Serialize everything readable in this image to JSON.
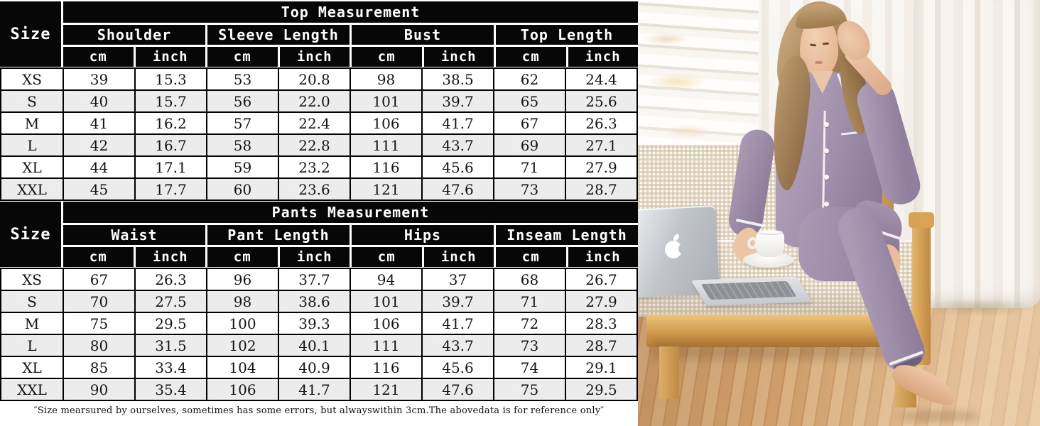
{
  "page": {
    "footnote": "″Size mearsured by ourselves, sometimes has some errors, but alwayswithin 3cm.The abovedata is for reference only″"
  },
  "tables": [
    {
      "title": "Top Measurement",
      "size_label": "Size",
      "column_groups": [
        {
          "label": "Shoulder",
          "units": [
            "cm",
            "inch"
          ]
        },
        {
          "label": "Sleeve Length",
          "units": [
            "cm",
            "inch"
          ]
        },
        {
          "label": "Bust",
          "units": [
            "cm",
            "inch"
          ]
        },
        {
          "label": "Top Length",
          "units": [
            "cm",
            "inch"
          ]
        }
      ],
      "rows": [
        {
          "size": "XS",
          "values": [
            "39",
            "15.3",
            "53",
            "20.8",
            "98",
            "38.5",
            "62",
            "24.4"
          ]
        },
        {
          "size": "S",
          "values": [
            "40",
            "15.7",
            "56",
            "22.0",
            "101",
            "39.7",
            "65",
            "25.6"
          ]
        },
        {
          "size": "M",
          "values": [
            "41",
            "16.2",
            "57",
            "22.4",
            "106",
            "41.7",
            "67",
            "26.3"
          ]
        },
        {
          "size": "L",
          "values": [
            "42",
            "16.7",
            "58",
            "22.8",
            "111",
            "43.7",
            "69",
            "27.1"
          ]
        },
        {
          "size": "XL",
          "values": [
            "44",
            "17.1",
            "59",
            "23.2",
            "116",
            "45.6",
            "71",
            "27.9"
          ]
        },
        {
          "size": "XXL",
          "values": [
            "45",
            "17.7",
            "60",
            "23.6",
            "121",
            "47.6",
            "73",
            "28.7"
          ]
        }
      ]
    },
    {
      "title": "Pants Measurement",
      "size_label": "Size",
      "column_groups": [
        {
          "label": "Waist",
          "units": [
            "cm",
            "inch"
          ]
        },
        {
          "label": "Pant Length",
          "units": [
            "cm",
            "inch"
          ]
        },
        {
          "label": "Hips",
          "units": [
            "cm",
            "inch"
          ]
        },
        {
          "label": "Inseam Length",
          "units": [
            "cm",
            "inch"
          ]
        }
      ],
      "rows": [
        {
          "size": "XS",
          "values": [
            "67",
            "26.3",
            "96",
            "37.7",
            "94",
            "37",
            "68",
            "26.7"
          ]
        },
        {
          "size": "S",
          "values": [
            "70",
            "27.5",
            "98",
            "38.6",
            "101",
            "39.7",
            "71",
            "27.9"
          ]
        },
        {
          "size": "M",
          "values": [
            "75",
            "29.5",
            "100",
            "39.3",
            "106",
            "41.7",
            "72",
            "28.3"
          ]
        },
        {
          "size": "L",
          "values": [
            "80",
            "31.5",
            "102",
            "40.1",
            "111",
            "43.7",
            "73",
            "28.7"
          ]
        },
        {
          "size": "XL",
          "values": [
            "85",
            "33.4",
            "104",
            "40.9",
            "116",
            "45.6",
            "74",
            "29.1"
          ]
        },
        {
          "size": "XXL",
          "values": [
            "90",
            "35.4",
            "106",
            "41.7",
            "121",
            "47.6",
            "75",
            "29.5"
          ]
        }
      ]
    }
  ],
  "colors": {
    "table_header_bg": "#070707",
    "table_header_text": "#ffffff",
    "row_alt_bg": "#ececec",
    "pajama_purple": "#a696b0",
    "piping_white": "#f2eef4",
    "bench_wood": "#d9a75f",
    "floor_wood": "#cf9e6a",
    "cushion_beige": "#e7ddca"
  }
}
